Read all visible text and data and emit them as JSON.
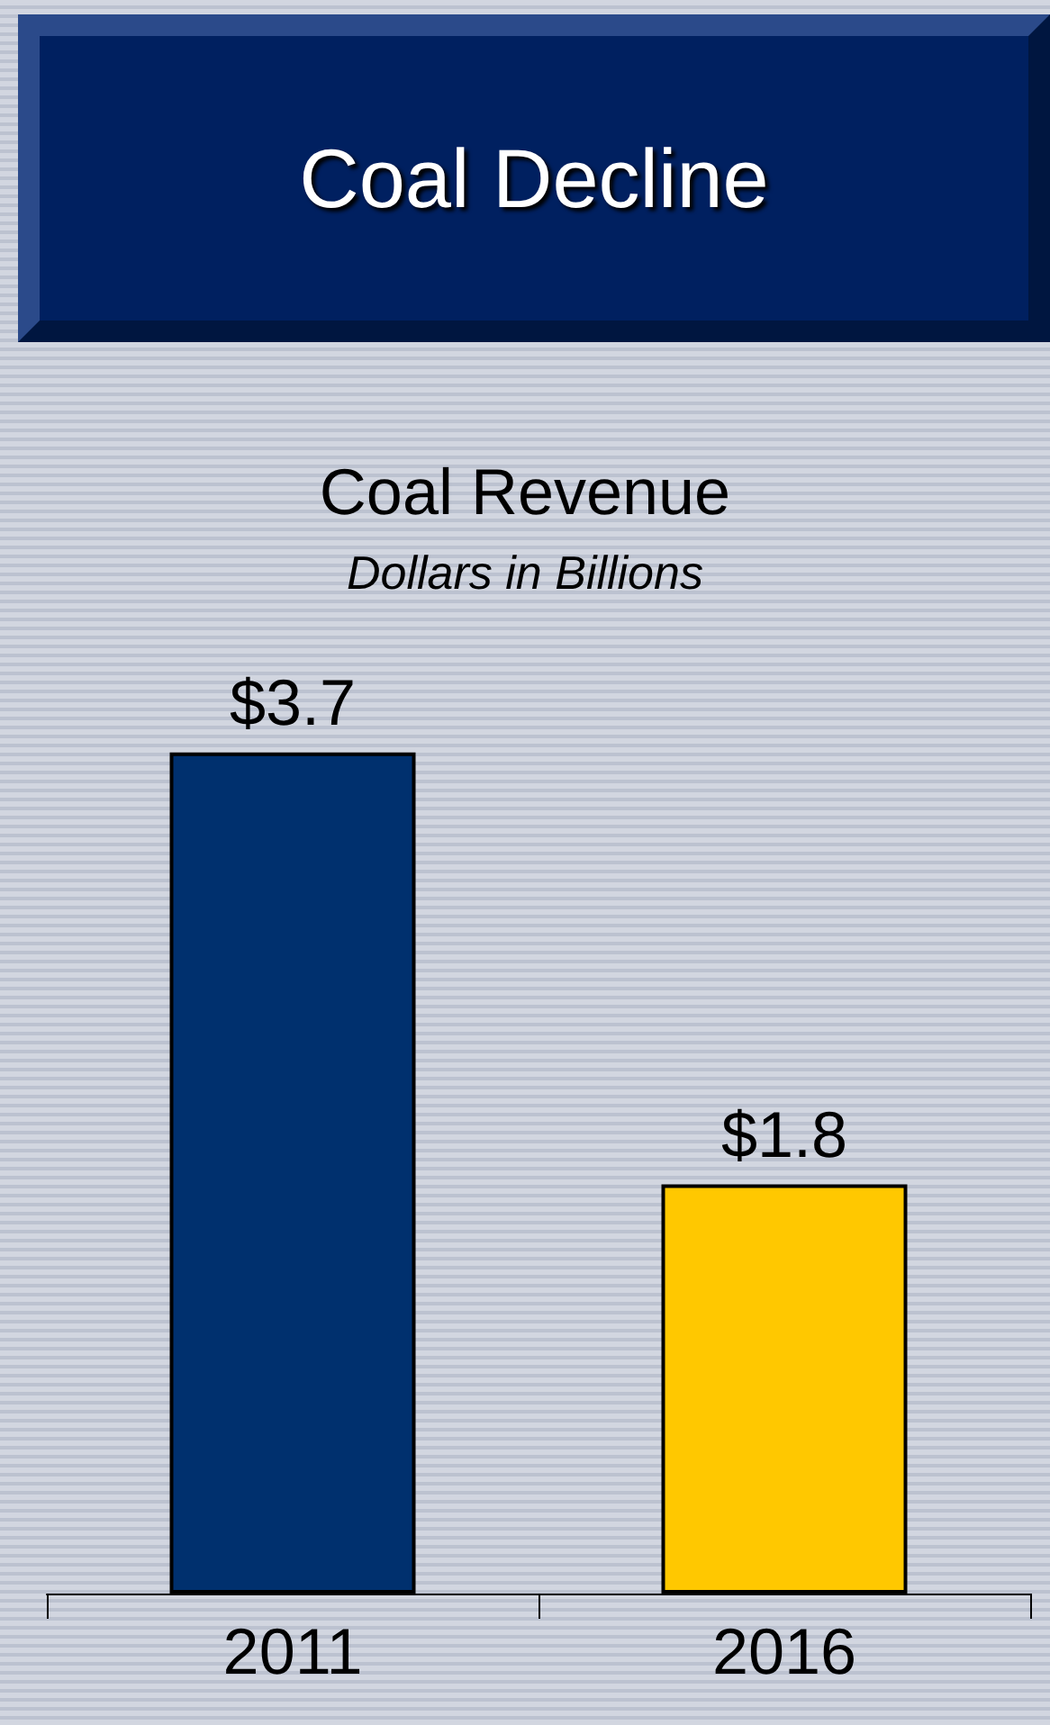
{
  "chart_data": {
    "type": "bar",
    "title": "Coal Decline",
    "subtitle": "Coal Revenue",
    "annotations": [
      "Dollars in Billions"
    ],
    "categories": [
      "2011",
      "2016"
    ],
    "values": [
      3.7,
      1.8
    ],
    "colors": [
      "#00306e",
      "#ffc800"
    ],
    "value_labels": [
      "$3.7",
      "$1.8"
    ]
  }
}
